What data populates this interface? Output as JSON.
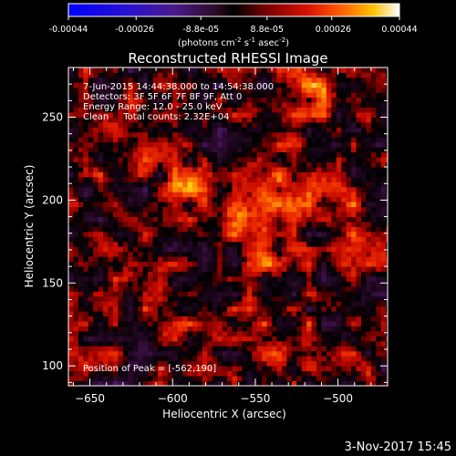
{
  "colorbar": {
    "tick_labels": [
      "-0.00044",
      "-0.00026",
      "-8.8e-05",
      "8.8e-05",
      "0.00026",
      "0.00044"
    ],
    "min": -0.00044,
    "max": 0.00044,
    "unit_text": "(photons cm",
    "unit_exp1": "-2",
    "unit_mid": " s",
    "unit_exp2": "-1",
    "unit_mid2": " asec",
    "unit_exp3": "-2",
    "unit_close": ")",
    "colormap": "RHESSI red/orange/yellow (negative: blue/purple)"
  },
  "chart_data": {
    "type": "heatmap",
    "title": "Reconstructed RHESSI Image",
    "xlabel": "Heliocentric X (arcsec)",
    "ylabel": "Heliocentric Y (arcsec)",
    "xlim": [
      -663,
      -470
    ],
    "ylim": [
      88,
      280
    ],
    "x_ticks": [
      -650,
      -600,
      -550,
      -500
    ],
    "y_ticks": [
      100,
      150,
      200,
      250
    ],
    "annotations": [
      "7-Jun-2015 14:44:38.000 to 14:54:38.000",
      "Detectors: 3F 5F 6F 7F 8F 9F, Att 0",
      "Energy Range: 12.0 - 25.0 keV",
      "Clean     Total counts: 2.32E+04"
    ],
    "peak_label": "Position of Peak = [-562,190]",
    "peak": {
      "x": -562,
      "y": 190
    },
    "sources": [
      {
        "x": -562,
        "y": 190,
        "relative_intensity": 1.0
      },
      {
        "x": -535,
        "y": 205,
        "relative_intensity": 0.7
      },
      {
        "x": -520,
        "y": 262,
        "relative_intensity": 0.6
      },
      {
        "x": -540,
        "y": 160,
        "relative_intensity": 0.5
      },
      {
        "x": -530,
        "y": 110,
        "relative_intensity": 0.55
      },
      {
        "x": -620,
        "y": 240,
        "relative_intensity": 0.4
      },
      {
        "x": -590,
        "y": 210,
        "relative_intensity": 0.45
      },
      {
        "x": -500,
        "y": 190,
        "relative_intensity": 0.35
      },
      {
        "x": -600,
        "y": 120,
        "relative_intensity": 0.3
      }
    ],
    "grid": false
  },
  "footer_date": "3-Nov-2017 15:45"
}
